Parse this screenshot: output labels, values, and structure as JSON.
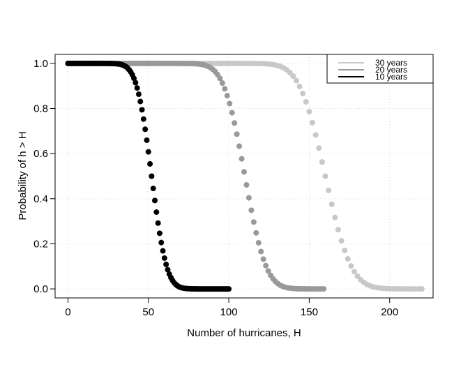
{
  "chart_data": {
    "type": "scatter",
    "title": "",
    "xlabel": "Number of hurricanes, H",
    "ylabel": "Probability of h > H",
    "xlim": [
      -8,
      227
    ],
    "ylim": [
      -0.04,
      1.04
    ],
    "xticks": [
      0,
      50,
      100,
      150,
      200
    ],
    "yticks": [
      0.0,
      0.2,
      0.4,
      0.6,
      0.8,
      1.0
    ],
    "xtick_labels": [
      "0",
      "50",
      "100",
      "150",
      "200"
    ],
    "ytick_labels": [
      "0.0",
      "0.2",
      "0.4",
      "0.6",
      "0.8",
      "1.0"
    ],
    "grid": true,
    "legend_position": "top-right",
    "series": [
      {
        "name": "30 years",
        "color": "#c8c8c8",
        "x_range": [
          0,
          220
        ],
        "step": 2,
        "mean": 160,
        "sd": 12.6
      },
      {
        "name": "20 years",
        "color": "#999999",
        "x_range": [
          0,
          160
        ],
        "step": 1.5,
        "mean": 110,
        "sd": 10.3
      },
      {
        "name": "10 years",
        "color": "#000000",
        "x_range": [
          0,
          100
        ],
        "step": 1,
        "mean": 52,
        "sd": 7.3
      }
    ]
  }
}
